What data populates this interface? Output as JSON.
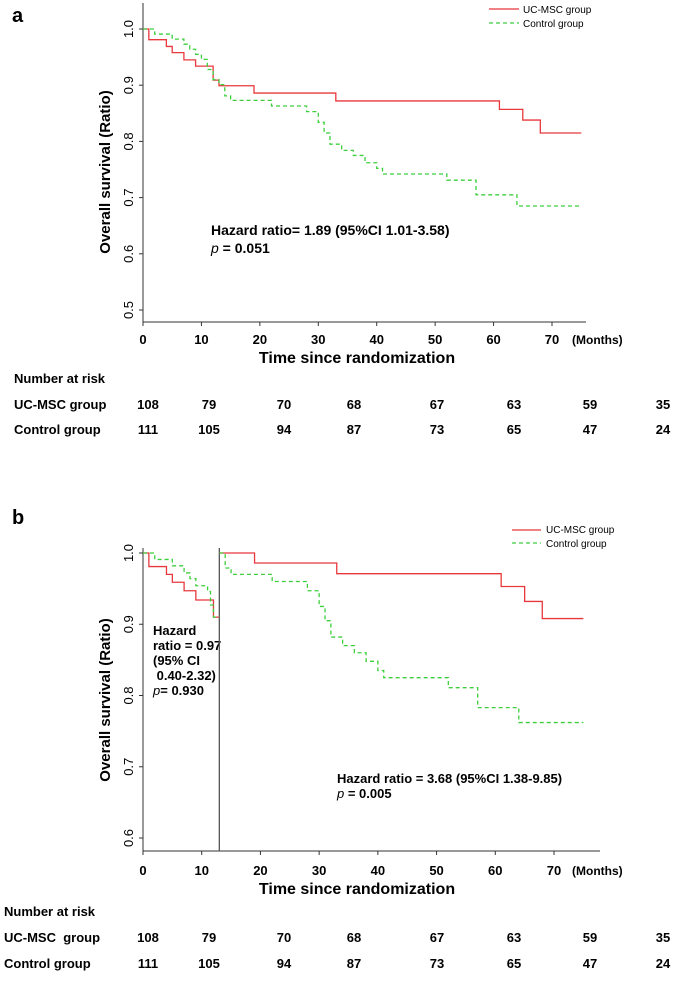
{
  "chart_data": [
    {
      "type": "line",
      "panel_label": "a",
      "xlabel": "Time since randomization",
      "x_unit_label": "(Months)",
      "ylabel": "Overall survival (Ratio)",
      "xlim": [
        0,
        75
      ],
      "ylim": [
        0.48,
        1.05
      ],
      "x_ticks": [
        0,
        10,
        20,
        30,
        40,
        50,
        60,
        70
      ],
      "y_ticks": [
        "0.5",
        "0.6",
        "0.7",
        "0.8",
        "0.9",
        "1.0"
      ],
      "grid": false,
      "legend_position": "top-right",
      "colors": {
        "UC-MSC group": "#e8383d",
        "Control group": "#3ccf3c"
      },
      "series": [
        {
          "name": "UC-MSC group",
          "style": "solid",
          "step_points": [
            [
              0,
              1.0
            ],
            [
              1,
              0.981
            ],
            [
              4,
              0.969
            ],
            [
              5,
              0.958
            ],
            [
              7,
              0.945
            ],
            [
              9,
              0.934
            ],
            [
              12,
              0.909
            ],
            [
              13,
              0.899
            ],
            [
              19,
              0.886
            ],
            [
              33,
              0.872
            ],
            [
              61,
              0.857
            ],
            [
              65,
              0.838
            ],
            [
              68,
              0.815
            ],
            [
              75,
              0.815
            ]
          ]
        },
        {
          "name": "Control group",
          "style": "dashed",
          "step_points": [
            [
              0,
              1.0
            ],
            [
              2,
              0.991
            ],
            [
              5,
              0.982
            ],
            [
              7,
              0.973
            ],
            [
              8,
              0.964
            ],
            [
              9,
              0.955
            ],
            [
              10,
              0.946
            ],
            [
              11,
              0.928
            ],
            [
              12,
              0.91
            ],
            [
              13,
              0.901
            ],
            [
              14,
              0.881
            ],
            [
              15,
              0.873
            ],
            [
              22,
              0.863
            ],
            [
              28,
              0.853
            ],
            [
              30,
              0.834
            ],
            [
              31,
              0.815
            ],
            [
              32,
              0.795
            ],
            [
              34,
              0.784
            ],
            [
              36,
              0.775
            ],
            [
              38,
              0.762
            ],
            [
              40,
              0.752
            ],
            [
              41,
              0.742
            ],
            [
              52,
              0.731
            ],
            [
              57,
              0.705
            ],
            [
              64,
              0.685
            ],
            [
              75,
              0.685
            ]
          ]
        }
      ],
      "annotations": [
        {
          "line1": "Hazard ratio= 1.89 (95%CI 1.01-3.58)",
          "p_symbol": "p",
          "p_text": " = 0.051"
        }
      ],
      "risk_table": {
        "title": "Number at risk",
        "rows": [
          {
            "label": "UC-MSC group",
            "values": [
              "108",
              "79",
              "70",
              "68",
              "67",
              "63",
              "59",
              "35"
            ]
          },
          {
            "label": "Control group",
            "values": [
              "111",
              "105",
              "94",
              "87",
              "73",
              "65",
              "47",
              "24"
            ]
          }
        ]
      }
    },
    {
      "type": "line",
      "panel_label": "b",
      "xlabel": "Time since randomization",
      "x_unit_label": "(Months)",
      "ylabel": "Overall survival (Ratio)",
      "xlim": [
        0,
        75
      ],
      "ylim": [
        0.58,
        1.01
      ],
      "x_ticks": [
        0,
        10,
        20,
        30,
        40,
        50,
        60,
        70
      ],
      "y_ticks": [
        "0.6",
        "0.7",
        "0.8",
        "0.9",
        "1.0"
      ],
      "grid": false,
      "legend_position": "top-right",
      "landmark_month": 13,
      "colors": {
        "UC-MSC group": "#e8383d",
        "Control group": "#3ccf3c"
      },
      "series": [
        {
          "name": "UC-MSC group",
          "style": "solid",
          "segments": [
            [
              [
                0,
                1.0
              ],
              [
                1,
                0.981
              ],
              [
                4,
                0.97
              ],
              [
                5,
                0.959
              ],
              [
                7,
                0.947
              ],
              [
                9,
                0.934
              ],
              [
                12,
                0.91
              ],
              [
                13,
                0.91
              ]
            ],
            [
              [
                13,
                1.0
              ],
              [
                19,
                0.986
              ],
              [
                33,
                0.971
              ],
              [
                61,
                0.953
              ],
              [
                65,
                0.932
              ],
              [
                68,
                0.908
              ],
              [
                75,
                0.908
              ]
            ]
          ]
        },
        {
          "name": "Control group",
          "style": "dashed",
          "segments": [
            [
              [
                0,
                1.0
              ],
              [
                2,
                0.991
              ],
              [
                5,
                0.982
              ],
              [
                7,
                0.972
              ],
              [
                8,
                0.964
              ],
              [
                9,
                0.954
              ],
              [
                11,
                0.946
              ],
              [
                11.5,
                0.927
              ],
              [
                12,
                0.91
              ],
              [
                13,
                0.91
              ]
            ],
            [
              [
                13,
                1.0
              ],
              [
                14,
                0.979
              ],
              [
                15,
                0.97
              ],
              [
                22,
                0.96
              ],
              [
                28,
                0.947
              ],
              [
                30,
                0.925
              ],
              [
                31,
                0.905
              ],
              [
                32,
                0.882
              ],
              [
                34,
                0.87
              ],
              [
                36,
                0.86
              ],
              [
                38,
                0.848
              ],
              [
                40,
                0.835
              ],
              [
                41,
                0.825
              ],
              [
                52,
                0.811
              ],
              [
                57,
                0.783
              ],
              [
                64,
                0.762
              ],
              [
                75,
                0.762
              ]
            ]
          ]
        }
      ],
      "annotations": [
        {
          "lines": [
            "Hazard",
            "ratio = 0.97",
            "(95% CI",
            " 0.40-2.32)"
          ],
          "p_symbol": "p",
          "p_text": "= 0.930"
        },
        {
          "line1": "Hazard ratio = 3.68 (95%CI 1.38-9.85)",
          "p_symbol": "p",
          "p_text": " = 0.005"
        }
      ],
      "risk_table": {
        "title": "Number at risk",
        "rows": [
          {
            "label": "UC-MSC  group",
            "values": [
              "108",
              "79",
              "70",
              "68",
              "67",
              "63",
              "59",
              "35"
            ]
          },
          {
            "label": "Control group",
            "values": [
              "111",
              "105",
              "94",
              "87",
              "73",
              "65",
              "47",
              "24"
            ]
          }
        ]
      }
    }
  ]
}
